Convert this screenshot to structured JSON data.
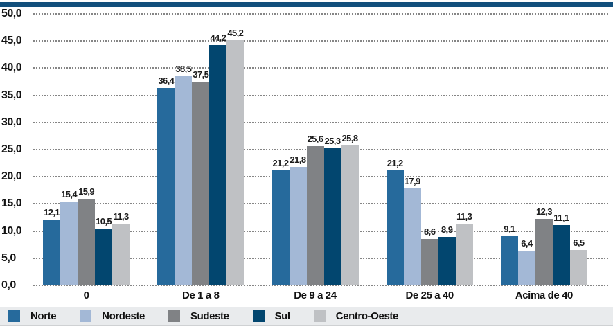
{
  "chart_data": {
    "type": "bar",
    "title": "",
    "categories": [
      "0",
      "De 1 a 8",
      "De 9 a 24",
      "De 25 a 40",
      "Acima de 40"
    ],
    "series": [
      {
        "name": "Norte",
        "color": "#266a9c",
        "values": [
          12.1,
          36.4,
          21.2,
          21.2,
          9.1
        ]
      },
      {
        "name": "Nordeste",
        "color": "#a3b8d6",
        "values": [
          15.4,
          38.5,
          21.8,
          17.9,
          6.4
        ]
      },
      {
        "name": "Sudeste",
        "color": "#808285",
        "values": [
          15.9,
          37.5,
          25.6,
          8.6,
          12.3
        ]
      },
      {
        "name": "Sul",
        "color": "#02466f",
        "values": [
          10.5,
          44.2,
          25.3,
          8.9,
          11.1
        ]
      },
      {
        "name": "Centro-Oeste",
        "color": "#bfc1c4",
        "values": [
          11.3,
          45.2,
          25.8,
          11.3,
          6.5
        ]
      }
    ],
    "yticks": [
      "50,0",
      "45,0",
      "40,0",
      "35,0",
      "30,0",
      "25,0",
      "20,0",
      "15,0",
      "10,0",
      "5,0",
      "0,0"
    ],
    "ylim": [
      0,
      50
    ],
    "ytick_step": 5,
    "decimal_separator": ",",
    "value_labels": true,
    "grid": "horizontal-dotted",
    "legend_position": "bottom"
  },
  "colors": {
    "top_border": "#124f7c",
    "legend_bg": "#e9ebed",
    "gridline": "#858585",
    "text": "#1a1a1a"
  }
}
